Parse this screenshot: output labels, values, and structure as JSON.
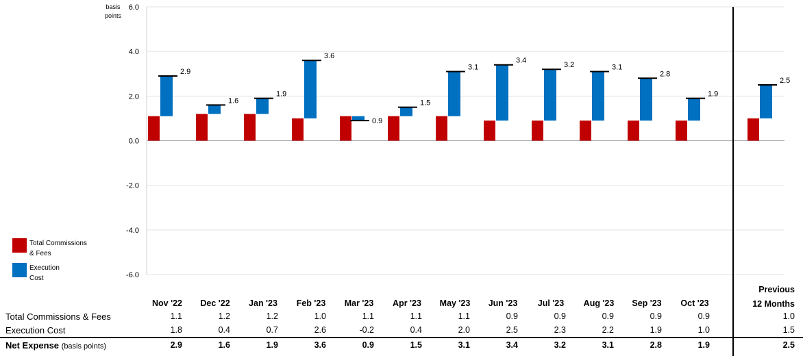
{
  "chart_data": {
    "type": "waterfall-bar",
    "yaxis": {
      "unit_label_line1": "basis",
      "unit_label_line2": "points",
      "min": -6.0,
      "max": 6.0,
      "ticks": [
        "6.0",
        "4.0",
        "2.0",
        "0.0",
        "-2.0",
        "-4.0",
        "-6.0"
      ]
    },
    "categories": [
      "Nov '22",
      "Dec '22",
      "Jan '23",
      "Feb '23",
      "Mar '23",
      "Apr '23",
      "May '23",
      "Jun '23",
      "Jul '23",
      "Aug '23",
      "Sep '23",
      "Oct '23"
    ],
    "summary_category": {
      "line1": "Previous",
      "line2": "12 Months"
    },
    "series": [
      {
        "name": "Total Commissions & Fees",
        "color": "#c00000",
        "values": [
          1.1,
          1.2,
          1.2,
          1.0,
          1.1,
          1.1,
          1.1,
          0.9,
          0.9,
          0.9,
          0.9,
          0.9
        ],
        "summary": 1.0,
        "display": [
          "1.1",
          "1.2",
          "1.2",
          "1.0",
          "1.1",
          "1.1",
          "1.1",
          "0.9",
          "0.9",
          "0.9",
          "0.9",
          "0.9"
        ],
        "summary_display": "1.0"
      },
      {
        "name": "Execution Cost",
        "color": "#0070c0",
        "values": [
          1.8,
          0.4,
          0.7,
          2.6,
          -0.2,
          0.4,
          2.0,
          2.5,
          2.3,
          2.2,
          1.9,
          1.0
        ],
        "summary": 1.5,
        "display": [
          "1.8",
          "0.4",
          "0.7",
          "2.6",
          "-0.2",
          "0.4",
          "2.0",
          "2.5",
          "2.3",
          "2.2",
          "1.9",
          "1.0"
        ],
        "summary_display": "1.5"
      }
    ],
    "net": {
      "name": "Net Expense",
      "suffix": "(basis points)",
      "values": [
        2.9,
        1.6,
        1.9,
        3.6,
        0.9,
        1.5,
        3.1,
        3.4,
        3.2,
        3.1,
        2.8,
        1.9
      ],
      "summary": 2.5,
      "display": [
        "2.9",
        "1.6",
        "1.9",
        "3.6",
        "0.9",
        "1.5",
        "3.1",
        "3.4",
        "3.2",
        "3.1",
        "2.8",
        "1.9"
      ],
      "summary_display": "2.5"
    }
  },
  "legend": {
    "tcf_line1": "Total Commissions",
    "tcf_line2": "& Fees",
    "ec_line1": "Execution",
    "ec_line2": "Cost"
  }
}
